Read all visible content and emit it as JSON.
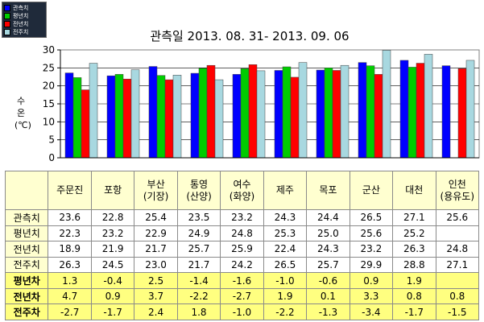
{
  "chart_data": {
    "type": "bar",
    "title": "관측일 2013. 08. 31-  2013. 09. 06",
    "ylabel": [
      "수",
      "온",
      "(℃)"
    ],
    "ylim": [
      0,
      30
    ],
    "yticks": [
      "0",
      "5",
      "10",
      "15",
      "20",
      "25",
      "30"
    ],
    "grid": true,
    "categories": [
      "주문진",
      "포항",
      "부산(기장)",
      "통영(산양)",
      "여수(화양)",
      "제주",
      "목포",
      "군산",
      "대천",
      "인천(용유도)"
    ],
    "series": [
      {
        "name": "관측치",
        "color": "#0000ff",
        "values": [
          23.6,
          22.8,
          25.4,
          23.5,
          23.2,
          24.3,
          24.4,
          26.5,
          27.1,
          25.6
        ]
      },
      {
        "name": "평년치",
        "color": "#00cc00",
        "values": [
          22.3,
          23.2,
          22.9,
          24.9,
          24.8,
          25.3,
          25.0,
          25.6,
          25.2,
          null
        ]
      },
      {
        "name": "전년치",
        "color": "#ff0000",
        "values": [
          18.9,
          21.9,
          21.7,
          25.7,
          25.9,
          22.4,
          24.3,
          23.2,
          26.3,
          24.8
        ]
      },
      {
        "name": "전주치",
        "color": "#a8d8e0",
        "values": [
          26.3,
          24.5,
          23.0,
          21.7,
          24.2,
          26.5,
          25.7,
          29.9,
          28.8,
          27.1
        ]
      }
    ],
    "legend_position": "top-left"
  },
  "table": {
    "header": [
      [
        "주문진"
      ],
      [
        "포항"
      ],
      [
        "부산",
        "(기장)"
      ],
      [
        "통영",
        "(산양)"
      ],
      [
        "여수",
        "(화양)"
      ],
      [
        "제주"
      ],
      [
        "목포"
      ],
      [
        "군산"
      ],
      [
        "대천"
      ],
      [
        "인천",
        "(용유도)"
      ]
    ],
    "rows": [
      {
        "label": "관측치",
        "style": "top",
        "values": [
          "23.6",
          "22.8",
          "25.4",
          "23.5",
          "23.2",
          "24.3",
          "24.4",
          "26.5",
          "27.1",
          "25.6"
        ]
      },
      {
        "label": "평년치",
        "style": "top",
        "values": [
          "22.3",
          "23.2",
          "22.9",
          "24.9",
          "24.8",
          "25.3",
          "25.0",
          "25.6",
          "25.2",
          ""
        ]
      },
      {
        "label": "전년치",
        "style": "top",
        "values": [
          "18.9",
          "21.9",
          "21.7",
          "25.7",
          "25.9",
          "22.4",
          "24.3",
          "23.2",
          "26.3",
          "24.8"
        ]
      },
      {
        "label": "전주치",
        "style": "top",
        "values": [
          "26.3",
          "24.5",
          "23.0",
          "21.7",
          "24.2",
          "26.5",
          "25.7",
          "29.9",
          "28.8",
          "27.1"
        ]
      },
      {
        "label": "평년차",
        "style": "bottom",
        "values": [
          "1.3",
          "-0.4",
          "2.5",
          "-1.4",
          "-1.6",
          "-1.0",
          "-0.6",
          "0.9",
          "1.9",
          ""
        ]
      },
      {
        "label": "전년차",
        "style": "bottom",
        "values": [
          "4.7",
          "0.9",
          "3.7",
          "-2.2",
          "-2.7",
          "1.9",
          "0.1",
          "3.3",
          "0.8",
          "0.8"
        ]
      },
      {
        "label": "전주차",
        "style": "bottom",
        "values": [
          "-2.7",
          "-1.7",
          "2.4",
          "1.8",
          "-1.0",
          "-2.2",
          "-1.3",
          "-3.4",
          "-1.7",
          "-1.5"
        ]
      }
    ]
  }
}
